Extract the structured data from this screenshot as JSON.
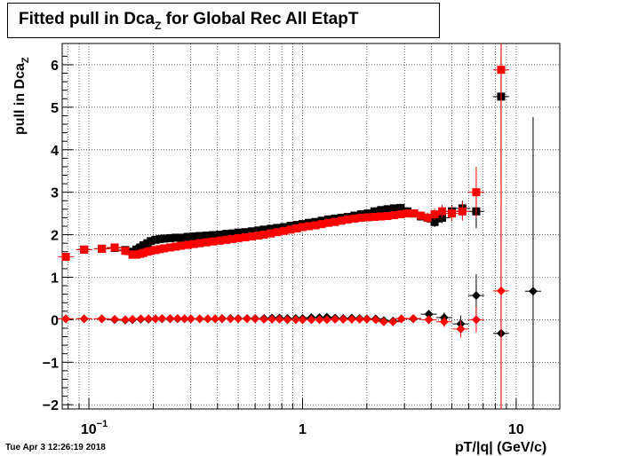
{
  "chart_data": {
    "type": "scatter",
    "title": "Fitted pull in Dca",
    "title_sub": "Z",
    "title_rest": " for Global Rec All EtapT",
    "xlabel": "pT/|q| (GeV/c)",
    "ylabel": "pull in Dca",
    "ylabel_sub": "Z",
    "x_scale": "log",
    "xlim": [
      0.075,
      16
    ],
    "ylim": [
      -2.1,
      6.5
    ],
    "grid": true,
    "y_ticks": [
      -2,
      -1,
      0,
      1,
      2,
      3,
      4,
      5,
      6
    ],
    "y_tick_labels": [
      "−2",
      "−1",
      "0",
      "1",
      "2",
      "3",
      "4",
      "5",
      "6"
    ],
    "x_major_ticks": [
      0.1,
      1,
      10
    ],
    "x_tick_labels": [
      {
        "base": "10",
        "exp": "−1"
      },
      {
        "base": "1",
        "exp": ""
      },
      {
        "base": "10",
        "exp": ""
      }
    ],
    "series": [
      {
        "color": "#000000",
        "marker": "square",
        "x": [
          0.095,
          0.115,
          0.132,
          0.148,
          0.16,
          0.167,
          0.174,
          0.18,
          0.188,
          0.195,
          0.205,
          0.215,
          0.225,
          0.24,
          0.255,
          0.27,
          0.29,
          0.31,
          0.33,
          0.355,
          0.38,
          0.41,
          0.44,
          0.47,
          0.5,
          0.54,
          0.58,
          0.62,
          0.66,
          0.71,
          0.76,
          0.82,
          0.88,
          0.94,
          1.0,
          1.07,
          1.15,
          1.23,
          1.32,
          1.42,
          1.52,
          1.63,
          1.75,
          1.88,
          2.02,
          2.17,
          2.33,
          2.5,
          2.68,
          2.88,
          3.1,
          3.33,
          3.58,
          3.85,
          4.15,
          4.5,
          5.0,
          5.6,
          6.5,
          8.5
        ],
        "y": [
          1.65,
          1.67,
          1.69,
          1.64,
          1.6,
          1.65,
          1.7,
          1.75,
          1.8,
          1.85,
          1.88,
          1.9,
          1.91,
          1.92,
          1.93,
          1.93,
          1.95,
          1.96,
          1.97,
          1.98,
          1.99,
          2.0,
          2.02,
          2.03,
          2.05,
          2.06,
          2.08,
          2.1,
          2.12,
          2.14,
          2.16,
          2.18,
          2.21,
          2.23,
          2.25,
          2.28,
          2.3,
          2.33,
          2.36,
          2.38,
          2.4,
          2.42,
          2.45,
          2.48,
          2.5,
          2.55,
          2.58,
          2.6,
          2.62,
          2.63,
          2.55,
          2.5,
          2.43,
          2.4,
          2.3,
          2.4,
          2.55,
          2.62,
          2.55,
          5.25
        ],
        "yerr": [
          0.02,
          0.02,
          0.02,
          0.02,
          0.02,
          0.02,
          0.02,
          0.02,
          0.02,
          0.02,
          0.02,
          0.02,
          0.02,
          0.02,
          0.02,
          0.02,
          0.02,
          0.02,
          0.02,
          0.02,
          0.02,
          0.02,
          0.02,
          0.02,
          0.02,
          0.02,
          0.02,
          0.02,
          0.02,
          0.02,
          0.02,
          0.02,
          0.02,
          0.02,
          0.02,
          0.02,
          0.02,
          0.02,
          0.02,
          0.02,
          0.02,
          0.02,
          0.02,
          0.02,
          0.03,
          0.03,
          0.03,
          0.04,
          0.05,
          0.05,
          0.06,
          0.07,
          0.08,
          0.1,
          0.12,
          0.13,
          0.15,
          0.18,
          0.4,
          2.0
        ]
      },
      {
        "color": "#ff0000",
        "marker": "square",
        "x": [
          0.078,
          0.095,
          0.115,
          0.132,
          0.148,
          0.16,
          0.167,
          0.174,
          0.18,
          0.188,
          0.195,
          0.205,
          0.215,
          0.225,
          0.24,
          0.255,
          0.27,
          0.29,
          0.31,
          0.33,
          0.355,
          0.38,
          0.41,
          0.44,
          0.47,
          0.5,
          0.54,
          0.58,
          0.62,
          0.66,
          0.71,
          0.76,
          0.82,
          0.88,
          0.94,
          1.0,
          1.07,
          1.15,
          1.23,
          1.32,
          1.42,
          1.52,
          1.63,
          1.75,
          1.88,
          2.02,
          2.17,
          2.33,
          2.5,
          2.68,
          2.88,
          3.1,
          3.33,
          3.58,
          3.85,
          4.15,
          4.5,
          5.0,
          5.6,
          6.5,
          8.5
        ],
        "y": [
          1.48,
          1.65,
          1.67,
          1.7,
          1.62,
          1.53,
          1.53,
          1.55,
          1.57,
          1.6,
          1.62,
          1.64,
          1.66,
          1.68,
          1.7,
          1.72,
          1.74,
          1.76,
          1.78,
          1.8,
          1.82,
          1.84,
          1.86,
          1.88,
          1.9,
          1.92,
          1.94,
          1.96,
          1.98,
          2.0,
          2.03,
          2.06,
          2.09,
          2.12,
          2.15,
          2.18,
          2.2,
          2.22,
          2.25,
          2.28,
          2.3,
          2.33,
          2.36,
          2.38,
          2.4,
          2.41,
          2.42,
          2.43,
          2.44,
          2.46,
          2.48,
          2.5,
          2.5,
          2.45,
          2.4,
          2.48,
          2.55,
          2.5,
          2.55,
          3.0,
          5.88
        ],
        "yerr": [
          0.03,
          0.02,
          0.02,
          0.02,
          0.02,
          0.02,
          0.02,
          0.02,
          0.02,
          0.02,
          0.02,
          0.02,
          0.02,
          0.02,
          0.02,
          0.02,
          0.02,
          0.02,
          0.02,
          0.02,
          0.02,
          0.02,
          0.02,
          0.02,
          0.02,
          0.02,
          0.02,
          0.02,
          0.02,
          0.02,
          0.02,
          0.02,
          0.02,
          0.02,
          0.02,
          0.02,
          0.02,
          0.02,
          0.02,
          0.02,
          0.02,
          0.02,
          0.02,
          0.02,
          0.03,
          0.03,
          0.03,
          0.04,
          0.05,
          0.05,
          0.06,
          0.07,
          0.08,
          0.1,
          0.12,
          0.13,
          0.15,
          0.18,
          0.22,
          0.6,
          6.0
        ]
      },
      {
        "color": "#000000",
        "marker": "diamond",
        "x": [
          0.078,
          0.095,
          0.115,
          0.132,
          0.148,
          0.16,
          0.175,
          0.19,
          0.205,
          0.22,
          0.24,
          0.26,
          0.28,
          0.3,
          0.33,
          0.36,
          0.39,
          0.42,
          0.46,
          0.5,
          0.55,
          0.6,
          0.66,
          0.72,
          0.78,
          0.85,
          0.93,
          1.0,
          1.1,
          1.2,
          1.3,
          1.42,
          1.55,
          1.7,
          1.85,
          2.0,
          2.2,
          2.4,
          2.65,
          2.9,
          3.3,
          3.9,
          4.6,
          5.5,
          6.5,
          8.5,
          12.0
        ],
        "y": [
          0.02,
          0.02,
          0.02,
          0.0,
          -0.01,
          0.0,
          0.01,
          0.01,
          0.02,
          0.02,
          0.02,
          0.02,
          0.02,
          0.02,
          0.02,
          0.02,
          0.02,
          0.03,
          0.03,
          0.03,
          0.03,
          0.03,
          0.03,
          0.04,
          0.04,
          0.03,
          0.03,
          0.03,
          0.05,
          0.05,
          0.06,
          0.04,
          0.03,
          0.04,
          0.03,
          0.02,
          0.02,
          -0.02,
          -0.03,
          0.02,
          0.02,
          0.13,
          0.05,
          -0.1,
          0.57,
          -0.32,
          0.67
        ],
        "yerr": [
          0.02,
          0.02,
          0.02,
          0.02,
          0.02,
          0.02,
          0.02,
          0.02,
          0.02,
          0.02,
          0.02,
          0.02,
          0.02,
          0.02,
          0.02,
          0.02,
          0.02,
          0.02,
          0.02,
          0.02,
          0.02,
          0.02,
          0.02,
          0.02,
          0.02,
          0.02,
          0.02,
          0.02,
          0.02,
          0.03,
          0.03,
          0.03,
          0.03,
          0.03,
          0.04,
          0.04,
          0.05,
          0.05,
          0.06,
          0.07,
          0.08,
          0.1,
          0.12,
          0.2,
          0.5,
          3.0,
          4.1
        ]
      },
      {
        "color": "#ff0000",
        "marker": "diamond",
        "x": [
          0.078,
          0.095,
          0.115,
          0.132,
          0.148,
          0.16,
          0.175,
          0.19,
          0.205,
          0.22,
          0.24,
          0.26,
          0.28,
          0.3,
          0.33,
          0.36,
          0.39,
          0.42,
          0.46,
          0.5,
          0.55,
          0.6,
          0.66,
          0.72,
          0.78,
          0.85,
          0.93,
          1.0,
          1.1,
          1.2,
          1.3,
          1.42,
          1.55,
          1.7,
          1.85,
          2.0,
          2.2,
          2.4,
          2.65,
          2.9,
          3.3,
          3.9,
          4.6,
          5.5,
          6.5,
          8.5
        ],
        "y": [
          0.02,
          0.02,
          0.02,
          0.01,
          0.0,
          0.01,
          0.02,
          0.02,
          0.02,
          0.03,
          0.03,
          0.03,
          0.02,
          0.02,
          0.02,
          0.02,
          0.02,
          0.02,
          0.02,
          0.02,
          0.02,
          0.02,
          0.01,
          0.01,
          0.01,
          0.0,
          0.0,
          0.0,
          0.0,
          0.0,
          0.0,
          0.01,
          0.01,
          0.01,
          0.01,
          0.01,
          0.0,
          -0.05,
          -0.05,
          0.02,
          0.03,
          0.0,
          -0.05,
          -0.22,
          0.0,
          0.68
        ],
        "yerr": [
          0.02,
          0.02,
          0.02,
          0.02,
          0.02,
          0.02,
          0.02,
          0.02,
          0.02,
          0.02,
          0.02,
          0.02,
          0.02,
          0.02,
          0.02,
          0.02,
          0.02,
          0.02,
          0.02,
          0.02,
          0.02,
          0.02,
          0.02,
          0.02,
          0.02,
          0.02,
          0.02,
          0.02,
          0.02,
          0.03,
          0.03,
          0.03,
          0.03,
          0.03,
          0.04,
          0.04,
          0.05,
          0.05,
          0.06,
          0.07,
          0.08,
          0.1,
          0.12,
          0.2,
          0.3,
          5.5
        ]
      }
    ]
  },
  "footer": {
    "timestamp": "Tue Apr  3 12:26:19 2018"
  }
}
